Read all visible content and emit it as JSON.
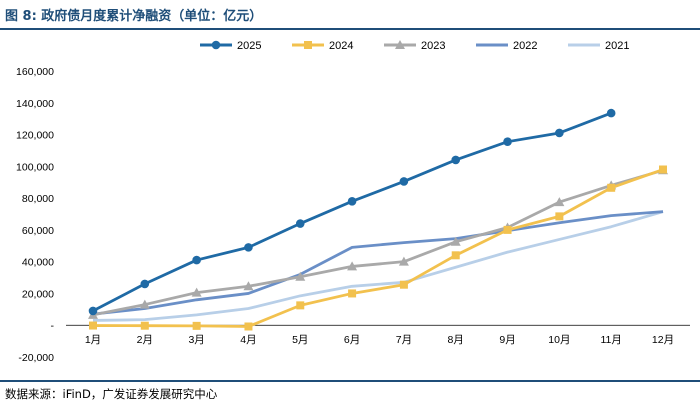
{
  "title": "图 8: 政府债月度累计净融资（单位：亿元）",
  "source": "数据来源：iFinD，广发证券发展研究中心",
  "chart_data": {
    "type": "line",
    "title": "政府债月度累计净融资（单位：亿元）",
    "xlabel": "",
    "ylabel": "",
    "categories": [
      "1月",
      "2月",
      "3月",
      "4月",
      "5月",
      "6月",
      "7月",
      "8月",
      "9月",
      "10月",
      "11月",
      "12月"
    ],
    "ylim": [
      -20000,
      160000
    ],
    "yticks": [
      -20000,
      0,
      20000,
      40000,
      60000,
      80000,
      100000,
      120000,
      140000,
      160000
    ],
    "ytick_labels": [
      "-20,000",
      "-",
      "20,000",
      "40,000",
      "60,000",
      "80,000",
      "100,000",
      "120,000",
      "140,000",
      "160,000"
    ],
    "legend_position": "top",
    "grid": false,
    "series": [
      {
        "name": "2025",
        "color": "#1f6aa5",
        "marker": "circle",
        "values": [
          9000,
          26000,
          41000,
          49000,
          64000,
          78000,
          90500,
          104000,
          115500,
          121000,
          133500,
          null
        ]
      },
      {
        "name": "2024",
        "color": "#f2c14e",
        "marker": "square",
        "values": [
          -200,
          -300,
          -400,
          -800,
          12500,
          20000,
          25500,
          44000,
          60000,
          68500,
          86500,
          98000
        ]
      },
      {
        "name": "2023",
        "color": "#a9a9a9",
        "marker": "triangle",
        "values": [
          6500,
          13000,
          20500,
          24500,
          30500,
          37000,
          40000,
          52500,
          61500,
          77500,
          88000,
          97500
        ]
      },
      {
        "name": "2022",
        "color": "#6a8fc7",
        "marker": "none",
        "values": [
          7000,
          10500,
          16000,
          20000,
          32000,
          49000,
          52000,
          54500,
          59500,
          64500,
          69000,
          71500
        ]
      },
      {
        "name": "2021",
        "color": "#b8cfe8",
        "marker": "none",
        "values": [
          3000,
          3500,
          6500,
          10500,
          18500,
          24500,
          27000,
          36500,
          46000,
          54000,
          62000,
          71500
        ]
      }
    ]
  }
}
